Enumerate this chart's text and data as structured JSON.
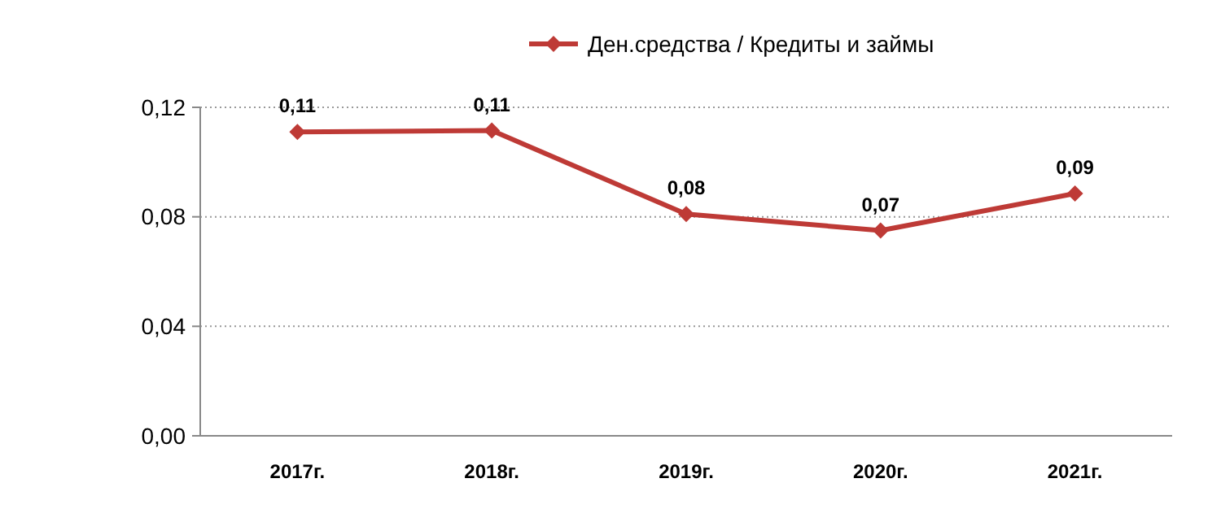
{
  "chart_data": {
    "type": "line",
    "categories": [
      "2017г.",
      "2018г.",
      "2019г.",
      "2020г.",
      "2021г."
    ],
    "series": [
      {
        "name": "Ден.средства / Кредиты и займы",
        "color": "#be3a36",
        "values": [
          0.111,
          0.1115,
          0.081,
          0.075,
          0.0885
        ],
        "value_labels": [
          "0,11",
          "0,11",
          "0,08",
          "0,07",
          "0,09"
        ]
      }
    ],
    "ylim": [
      0,
      0.12
    ],
    "yticks": [
      {
        "value": 0,
        "label": "0,00"
      },
      {
        "value": 0.04,
        "label": "0,04"
      },
      {
        "value": 0.08,
        "label": "0,08"
      },
      {
        "value": 0.12,
        "label": "0,12"
      }
    ],
    "grid": "y",
    "legend": "top",
    "marker": "diamond",
    "line_style": "solid"
  }
}
